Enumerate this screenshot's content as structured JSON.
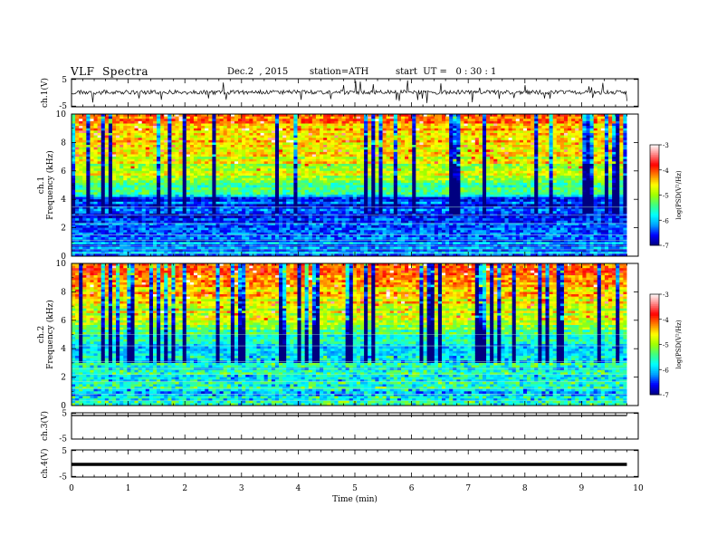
{
  "header": {
    "title": "VLF  Spectra",
    "date": "Dec.2  , 2015",
    "station": "station=ATH",
    "start_ut": "start  UT =   0 : 30 : 1"
  },
  "chart_data": [
    {
      "type": "line",
      "panel": "ch1-waveform",
      "ylabel": "ch.1(V)",
      "yticks": [
        "5",
        "-5"
      ],
      "ylim": [
        -5,
        5
      ],
      "xlim": [
        0,
        10
      ],
      "series": [
        {
          "values_description_level": 0.2
        }
      ]
    },
    {
      "type": "heatmap",
      "panel": "ch1-spectrogram",
      "ylabel": "ch.1\nFrequency (kHz)",
      "ylabel_lines": [
        "ch.1",
        "Frequency  (kHz)"
      ],
      "yticks": [
        "0",
        "2",
        "4",
        "6",
        "8",
        "10"
      ],
      "ylim": [
        0,
        10
      ],
      "xlim": [
        0,
        10
      ],
      "data_extent_min": 9.8,
      "colorbar": {
        "label": "log(PSD(V²/Hz)",
        "ticks": [
          "-3",
          "-4",
          "-5",
          "-6",
          "-7"
        ],
        "range": [
          -7,
          -3
        ]
      }
    },
    {
      "type": "heatmap",
      "panel": "ch2-spectrogram",
      "ylabel_lines": [
        "ch.2",
        "Frequency  (kHz)"
      ],
      "yticks": [
        "0",
        "2",
        "4",
        "6",
        "8",
        "10"
      ],
      "ylim": [
        0,
        10
      ],
      "xlim": [
        0,
        10
      ],
      "data_extent_min": 9.8,
      "colorbar": {
        "label": "log(PSD(V²/Hz)",
        "ticks": [
          "-3",
          "-4",
          "-5",
          "-6",
          "-7"
        ],
        "range": [
          -7,
          -3
        ]
      }
    },
    {
      "type": "line",
      "panel": "ch3-waveform",
      "ylabel": "ch.3(V)",
      "yticks": [
        "5"
      ],
      "ylim": [
        -5,
        5
      ],
      "xlim": [
        0,
        10
      ]
    },
    {
      "type": "line",
      "panel": "ch4-waveform",
      "ylabel": "ch.4(V)",
      "yticks": [
        "5",
        "-5"
      ],
      "ylim": [
        -5,
        5
      ],
      "xlim": [
        0,
        10
      ]
    }
  ],
  "xaxis": {
    "label": "Time  (min)",
    "ticks": [
      "0",
      "1",
      "2",
      "3",
      "4",
      "5",
      "6",
      "7",
      "8",
      "9",
      "10"
    ]
  },
  "colors": {
    "colormap": [
      "#000080",
      "#0000ff",
      "#00a0ff",
      "#00ffff",
      "#40ff80",
      "#a0ff00",
      "#ffff00",
      "#ff8000",
      "#ff0000",
      "#ff8080",
      "#ffffff"
    ]
  }
}
